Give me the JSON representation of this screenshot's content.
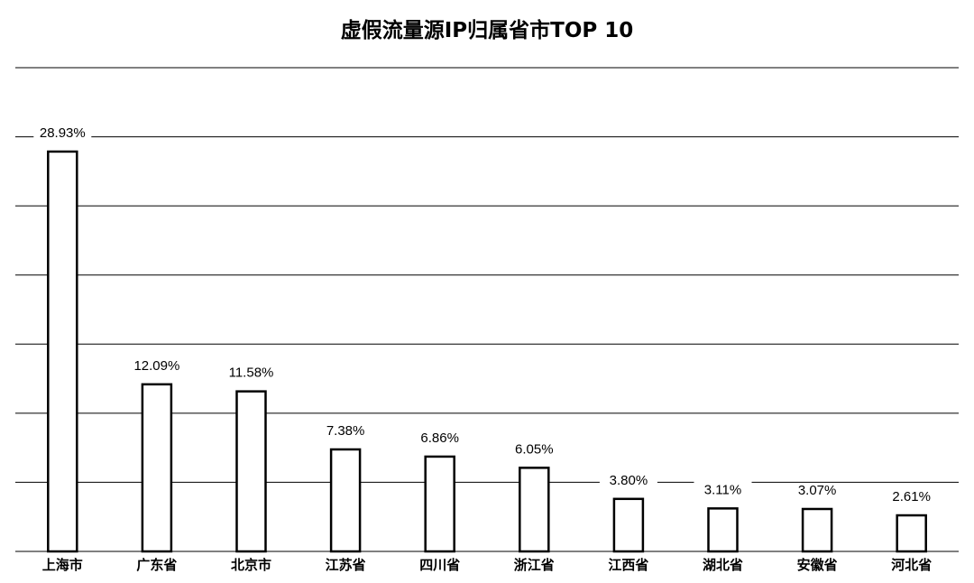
{
  "chart_data": {
    "type": "bar",
    "title": "虚假流量源IP归属省市TOP 10",
    "categories": [
      "上海市",
      "广东省",
      "北京市",
      "江苏省",
      "四川省",
      "浙江省",
      "江西省",
      "湖北省",
      "安徽省",
      "河北省"
    ],
    "values": [
      28.93,
      12.09,
      11.58,
      7.38,
      6.86,
      6.05,
      3.8,
      3.11,
      3.07,
      2.61
    ],
    "data_labels": [
      "28.93%",
      "12.09%",
      "11.58%",
      "7.38%",
      "6.86%",
      "6.05%",
      "3.80%",
      "3.11%",
      "3.07%",
      "2.61%"
    ],
    "value_unit": "%",
    "xlabel": "",
    "ylabel": "",
    "ylim": [
      0,
      35
    ],
    "grid": true,
    "y_tick_labels_shown": false,
    "bar_fill": "#ffffff",
    "bar_stroke": "#000000",
    "grid_color": "#000000"
  }
}
